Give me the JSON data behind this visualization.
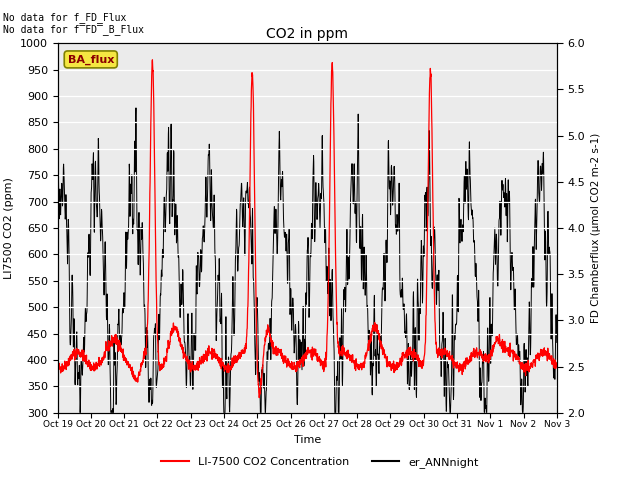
{
  "title": "CO2 in ppm",
  "xlabel": "Time",
  "ylabel_left": "LI7500 CO2 (ppm)",
  "ylabel_right": "FD Chamberflux (μmol CO2 m-2 s-1)",
  "ylim_left": [
    300,
    1000
  ],
  "ylim_right": [
    2.0,
    6.0
  ],
  "text_no_data_1": "No data for f_FD_Flux",
  "text_no_data_2": "No data for f̅FD̅_B_Flux",
  "legend_label_red": "LI-7500 CO2 Concentration",
  "legend_label_black": "er_ANNnight",
  "ba_flux_label": "BA_flux",
  "background_color": "#ebebeb",
  "x_tick_labels": [
    "Oct 19",
    "Oct 20",
    "Oct 21",
    "Oct 22",
    "Oct 23",
    "Oct 24",
    "Oct 25",
    "Oct 26",
    "Oct 27",
    "Oct 28",
    "Oct 29",
    "Oct 30",
    "Oct 31",
    "Nov 1",
    "Nov 2",
    "Nov 3"
  ],
  "yticks_left": [
    300,
    350,
    400,
    450,
    500,
    550,
    600,
    650,
    700,
    750,
    800,
    850,
    900,
    950,
    1000
  ],
  "yticks_right": [
    2.0,
    2.5,
    3.0,
    3.5,
    4.0,
    4.5,
    5.0,
    5.5,
    6.0
  ],
  "seed": 42
}
